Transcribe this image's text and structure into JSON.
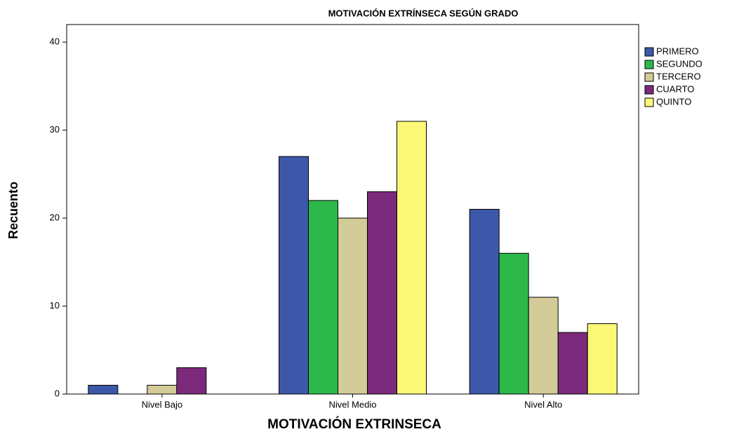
{
  "chart_data": {
    "type": "bar",
    "title": "MOTIVACIÓN EXTRÍNSECA SEGÚN GRADO",
    "x_label": "MOTIVACIÓN EXTRINSECA",
    "y_label": "Recuento",
    "categories": [
      "Nivel Bajo",
      "Nivel Medio",
      "Nivel Alto"
    ],
    "series": [
      {
        "name": "PRIMERO",
        "color": "#3d58a8",
        "values": [
          1,
          27,
          21
        ]
      },
      {
        "name": "SEGUNDO",
        "color": "#2db84a",
        "values": [
          0,
          22,
          16
        ]
      },
      {
        "name": "TERCERO",
        "color": "#d4cc98",
        "values": [
          1,
          20,
          11
        ]
      },
      {
        "name": "CUARTO",
        "color": "#7b2a7b",
        "values": [
          3,
          23,
          7
        ]
      },
      {
        "name": "QUINTO",
        "color": "#fbf877",
        "values": [
          0,
          31,
          8
        ]
      }
    ],
    "ylim": [
      0,
      42
    ],
    "yticks": [
      0,
      10,
      20,
      30,
      40
    ],
    "legend": "right"
  }
}
